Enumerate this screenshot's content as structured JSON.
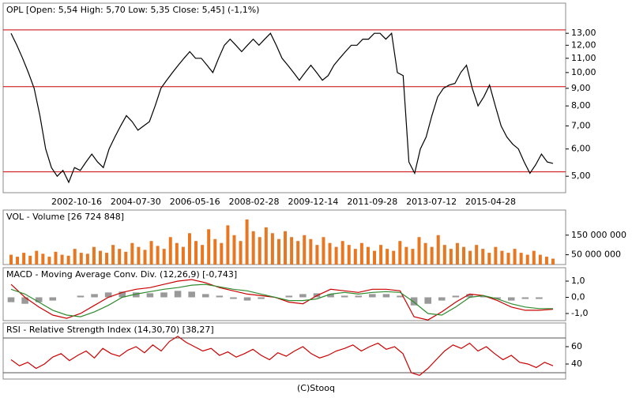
{
  "chart_data": [
    {
      "type": "line",
      "title": "OPL [Open: 5,54  High: 5,70  Low: 5,35  Close: 5,45] (-1,1%)",
      "log_scale": true,
      "ylim": [
        4.48,
        15.9
      ],
      "yticks": [
        {
          "value": 5,
          "label": "5,00"
        },
        {
          "value": 6,
          "label": "6,00"
        },
        {
          "value": 7,
          "label": "7,00"
        },
        {
          "value": 8,
          "label": "8,00"
        },
        {
          "value": 9,
          "label": "9,00"
        },
        {
          "value": 10,
          "label": "10,00"
        },
        {
          "value": 11,
          "label": "11,00"
        },
        {
          "value": 12,
          "label": "12,00"
        },
        {
          "value": 13,
          "label": "13,00"
        }
      ],
      "xtick_labels": [
        "2002-10-16",
        "2004-07-30",
        "2006-05-16",
        "2008-02-28",
        "2009-12-14",
        "2011-09-28",
        "2013-07-12",
        "2015-04-28"
      ],
      "levels": [
        13.3,
        9.1,
        5.15
      ],
      "level_color": "#cc0000",
      "series": [
        {
          "color": "#000000",
          "values": [
            13,
            12,
            11,
            10,
            9,
            7.5,
            6,
            5.3,
            5,
            5.2,
            4.8,
            5.3,
            5.2,
            5.5,
            5.8,
            5.5,
            5.3,
            6,
            6.5,
            7,
            7.5,
            7.2,
            6.8,
            7,
            7.2,
            8,
            9,
            9.5,
            10,
            10.5,
            11,
            11.5,
            11,
            11,
            10.5,
            10,
            11,
            12,
            12.5,
            12,
            11.5,
            12,
            12.5,
            12,
            12.5,
            13,
            12,
            11,
            10.5,
            10,
            9.5,
            10,
            10.5,
            10,
            9.5,
            9.8,
            10.5,
            11,
            11.5,
            12,
            12,
            12.5,
            12.5,
            13,
            13,
            12.5,
            13,
            10,
            9.8,
            5.5,
            5.1,
            6,
            6.5,
            7.5,
            8.5,
            9,
            9.2,
            9.3,
            10,
            10.5,
            9,
            8,
            8.5,
            9.2,
            8,
            7,
            6.5,
            6.2,
            6,
            5.5,
            5.1,
            5.4,
            5.8,
            5.5,
            5.45
          ]
        }
      ]
    },
    {
      "type": "bar",
      "title": "VOL - Volume [26 724 848]",
      "ylim": [
        0,
        278000000
      ],
      "yticks": [
        {
          "value": 150000000,
          "label": "150 000 000"
        },
        {
          "value": 50000000,
          "label": "50 000 000"
        }
      ],
      "series": [
        {
          "color": "#e87722",
          "values": [
            50000000,
            40000000,
            60000000,
            45000000,
            70000000,
            55000000,
            40000000,
            65000000,
            50000000,
            45000000,
            80000000,
            60000000,
            55000000,
            90000000,
            70000000,
            60000000,
            100000000,
            80000000,
            65000000,
            110000000,
            90000000,
            75000000,
            120000000,
            95000000,
            80000000,
            140000000,
            110000000,
            90000000,
            160000000,
            120000000,
            100000000,
            180000000,
            130000000,
            110000000,
            200000000,
            150000000,
            120000000,
            230000000,
            170000000,
            140000000,
            190000000,
            160000000,
            130000000,
            170000000,
            140000000,
            120000000,
            150000000,
            130000000,
            100000000,
            140000000,
            110000000,
            90000000,
            120000000,
            100000000,
            80000000,
            110000000,
            90000000,
            70000000,
            100000000,
            80000000,
            70000000,
            120000000,
            90000000,
            80000000,
            140000000,
            110000000,
            90000000,
            150000000,
            100000000,
            80000000,
            110000000,
            90000000,
            70000000,
            100000000,
            80000000,
            60000000,
            90000000,
            70000000,
            60000000,
            80000000,
            60000000,
            50000000,
            70000000,
            50000000,
            40000000,
            30000000
          ]
        }
      ]
    },
    {
      "type": "line",
      "title": "MACD - Moving Average Conv. Div. (12,26,9) [-0,743]",
      "ylim": [
        -1.44,
        1.83
      ],
      "yticks": [
        {
          "value": 1,
          "label": "1,0"
        },
        {
          "value": 0,
          "label": "0,0"
        },
        {
          "value": -1,
          "label": "-1,0"
        }
      ],
      "series": [
        {
          "style": "bar",
          "color": "#999999",
          "values": [
            -0.3,
            -0.4,
            -0.3,
            -0.2,
            0,
            0.1,
            0.2,
            0.3,
            0.35,
            0.3,
            0.25,
            0.3,
            0.4,
            0.35,
            0.2,
            0.1,
            -0.1,
            -0.2,
            -0.1,
            0,
            0.1,
            0.2,
            0.25,
            0.2,
            0.1,
            0.1,
            0.2,
            0.2,
            0.1,
            -0.5,
            -0.4,
            -0.2,
            0.1,
            0.2,
            0.1,
            -0.1,
            -0.2,
            -0.1,
            -0.1,
            0
          ]
        },
        {
          "style": "line",
          "color": "#cc0000",
          "values": [
            0.8,
            0,
            -0.6,
            -1.1,
            -1.3,
            -1,
            -0.5,
            0,
            0.3,
            0.5,
            0.6,
            0.8,
            1,
            1.1,
            0.9,
            0.6,
            0.4,
            0.2,
            0.1,
            0,
            -0.3,
            -0.4,
            0.1,
            0.5,
            0.4,
            0.3,
            0.5,
            0.5,
            0.4,
            -1.2,
            -1.4,
            -0.9,
            -0.3,
            0.2,
            0.1,
            -0.2,
            -0.6,
            -0.8,
            -0.8,
            -0.74
          ]
        },
        {
          "style": "line",
          "color": "#2e8b2e",
          "values": [
            0.5,
            0.2,
            -0.3,
            -0.8,
            -1.1,
            -1.2,
            -0.9,
            -0.5,
            0,
            0.2,
            0.35,
            0.5,
            0.6,
            0.75,
            0.8,
            0.65,
            0.5,
            0.4,
            0.2,
            0,
            -0.2,
            -0.2,
            -0.1,
            0.2,
            0.3,
            0.2,
            0.3,
            0.35,
            0.3,
            -0.3,
            -1,
            -1.1,
            -0.6,
            0,
            0.1,
            -0.1,
            -0.4,
            -0.6,
            -0.7,
            -0.7
          ]
        }
      ]
    },
    {
      "type": "line",
      "title": "RSI - Relative Strength Index (14,30,70) [38,27]",
      "ylim": [
        22.7,
        87.3
      ],
      "yticks": [
        60,
        40
      ],
      "levels": [
        70,
        30
      ],
      "level_color": "#555555",
      "series": [
        {
          "color": "#cc0000",
          "values": [
            45,
            38,
            42,
            35,
            40,
            48,
            52,
            44,
            50,
            55,
            47,
            58,
            52,
            49,
            56,
            60,
            53,
            62,
            55,
            66,
            72,
            65,
            60,
            55,
            58,
            50,
            54,
            48,
            52,
            57,
            50,
            45,
            53,
            49,
            55,
            60,
            52,
            47,
            50,
            55,
            58,
            62,
            55,
            60,
            64,
            57,
            60,
            52,
            30,
            27,
            35,
            45,
            55,
            62,
            58,
            64,
            55,
            60,
            52,
            45,
            50,
            42,
            40,
            36,
            42,
            38
          ]
        }
      ]
    }
  ],
  "footer": "(C)Stooq"
}
